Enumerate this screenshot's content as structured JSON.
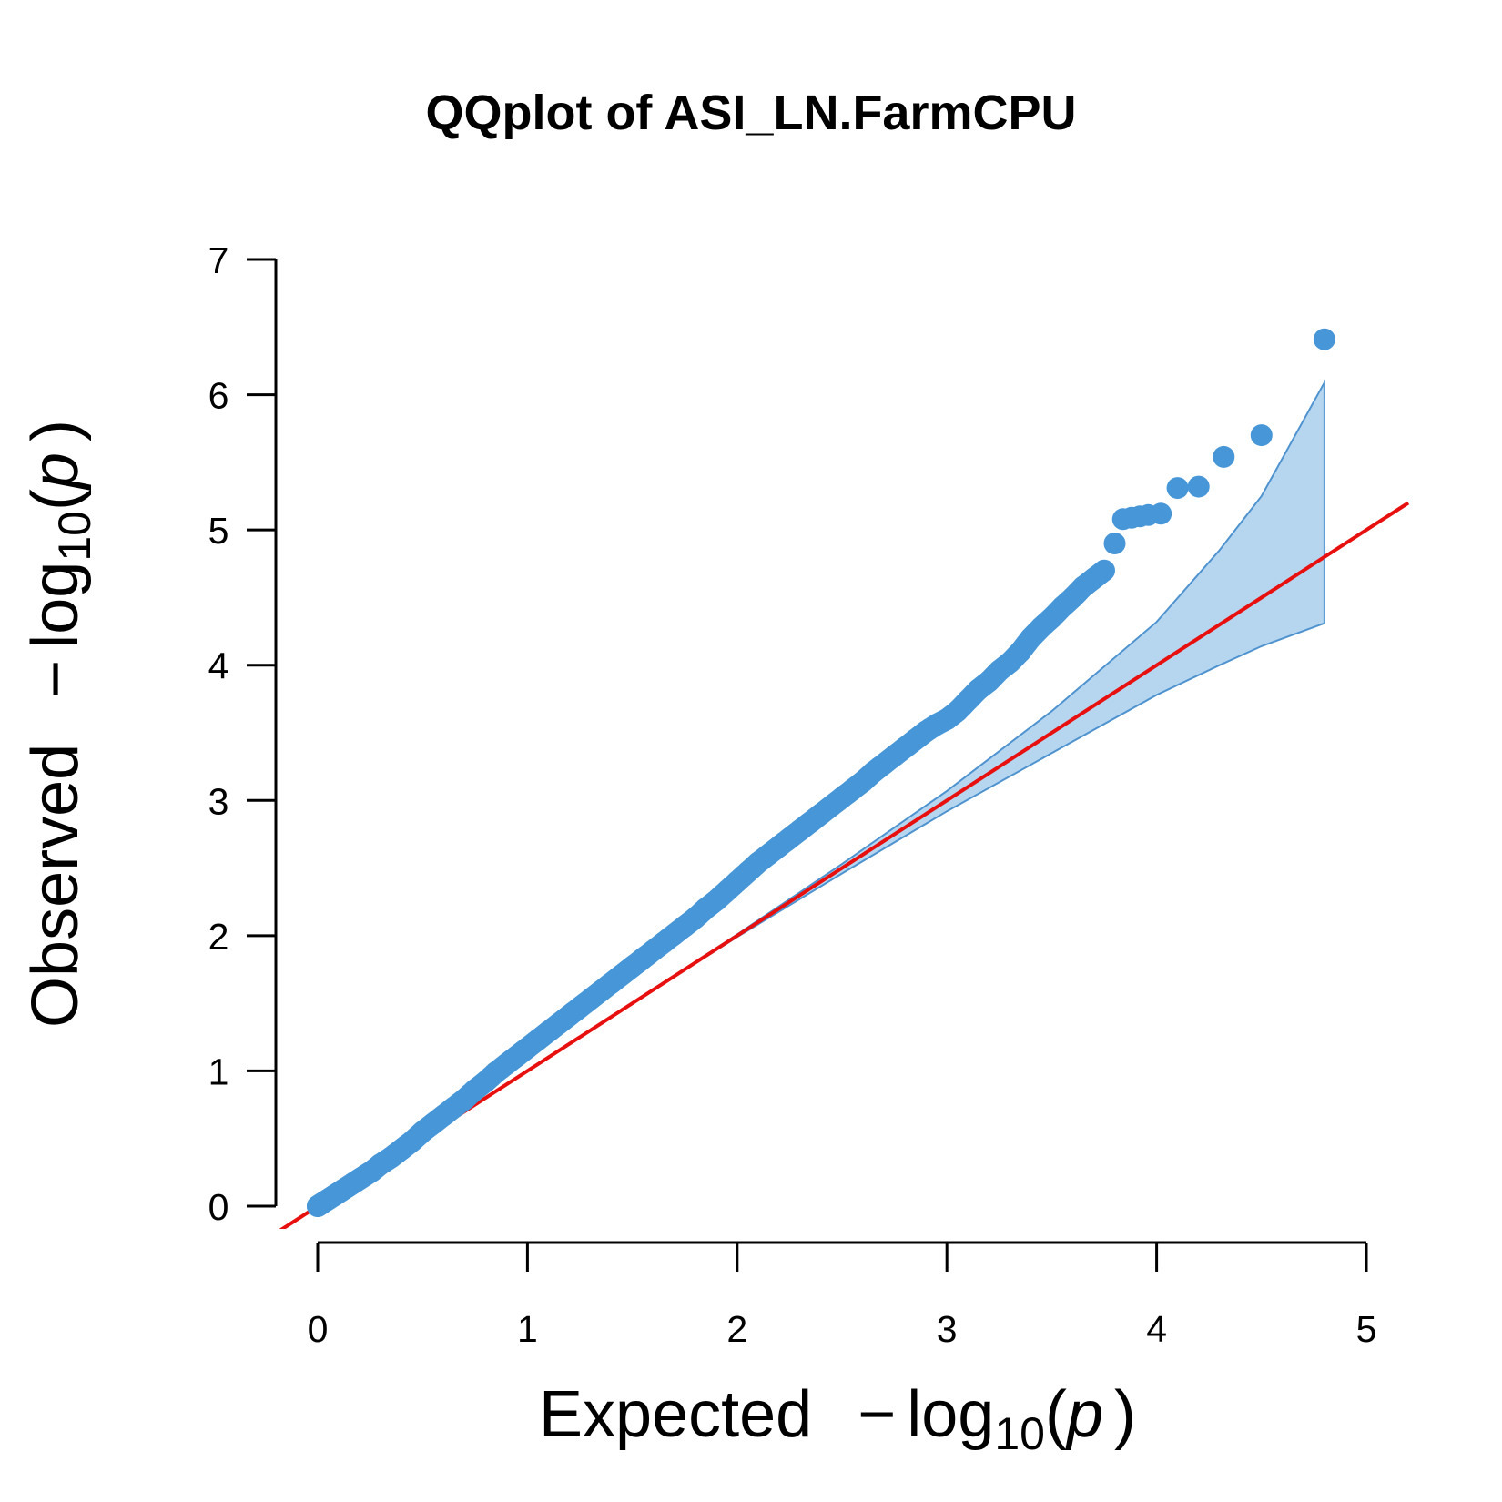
{
  "chart_data": {
    "type": "scatter",
    "title": "QQplot of ASI_LN.FarmCPU",
    "xlabel": {
      "prefix": "Expected",
      "minus": "−",
      "log": "log",
      "base": "10",
      "open": "(",
      "var": "p",
      "close": ")"
    },
    "ylabel": {
      "prefix": "Observed",
      "minus": "−",
      "log": "log",
      "base": "10",
      "open": "(",
      "var": "p",
      "close": ")"
    },
    "xlim": [
      0,
      5
    ],
    "ylim": [
      0,
      7
    ],
    "x_ticks": [
      "0",
      "1",
      "2",
      "3",
      "4",
      "5"
    ],
    "y_ticks": [
      "0",
      "1",
      "2",
      "3",
      "4",
      "5",
      "6",
      "7"
    ],
    "grid": false,
    "colors": {
      "points": "#4696d8",
      "reference_line": "#e8100f",
      "band_fill": "#b6d6f0",
      "band_edge": "#4e93cf"
    },
    "reference_line": {
      "slope": 1,
      "intercept": 0
    },
    "confidence_band": {
      "x": [
        0.0,
        0.5,
        1.0,
        1.5,
        2.0,
        2.5,
        3.0,
        3.5,
        4.0,
        4.3,
        4.5,
        4.8
      ],
      "upper": [
        0.0,
        0.5,
        1.0,
        1.5,
        2.01,
        2.53,
        3.07,
        3.66,
        4.32,
        4.85,
        5.25,
        6.09
      ],
      "lower": [
        0.0,
        0.5,
        1.0,
        1.5,
        1.99,
        2.46,
        2.92,
        3.35,
        3.78,
        4.0,
        4.14,
        4.31
      ]
    },
    "series": [
      {
        "points": [
          [
            0.0,
            0.0
          ],
          [
            0.02,
            0.02
          ],
          [
            0.05,
            0.05
          ],
          [
            0.08,
            0.08
          ],
          [
            0.11,
            0.11
          ],
          [
            0.14,
            0.14
          ],
          [
            0.17,
            0.17
          ],
          [
            0.2,
            0.2
          ],
          [
            0.23,
            0.23
          ],
          [
            0.26,
            0.26
          ],
          [
            0.3,
            0.31
          ],
          [
            0.35,
            0.36
          ],
          [
            0.4,
            0.42
          ],
          [
            0.45,
            0.48
          ],
          [
            0.5,
            0.55
          ],
          [
            0.55,
            0.61
          ],
          [
            0.6,
            0.67
          ],
          [
            0.65,
            0.73
          ],
          [
            0.7,
            0.79
          ],
          [
            0.75,
            0.86
          ],
          [
            0.8,
            0.92
          ],
          [
            0.85,
            0.99
          ],
          [
            0.9,
            1.05
          ],
          [
            0.95,
            1.11
          ],
          [
            1.0,
            1.17
          ],
          [
            1.05,
            1.23
          ],
          [
            1.1,
            1.29
          ],
          [
            1.15,
            1.35
          ],
          [
            1.2,
            1.41
          ],
          [
            1.25,
            1.47
          ],
          [
            1.3,
            1.53
          ],
          [
            1.35,
            1.59
          ],
          [
            1.4,
            1.65
          ],
          [
            1.45,
            1.71
          ],
          [
            1.5,
            1.77
          ],
          [
            1.55,
            1.83
          ],
          [
            1.6,
            1.89
          ],
          [
            1.65,
            1.95
          ],
          [
            1.7,
            2.01
          ],
          [
            1.75,
            2.07
          ],
          [
            1.8,
            2.13
          ],
          [
            1.85,
            2.2
          ],
          [
            1.9,
            2.26
          ],
          [
            1.95,
            2.33
          ],
          [
            2.0,
            2.4
          ],
          [
            2.05,
            2.47
          ],
          [
            2.1,
            2.54
          ],
          [
            2.15,
            2.6
          ],
          [
            2.2,
            2.66
          ],
          [
            2.25,
            2.72
          ],
          [
            2.3,
            2.78
          ],
          [
            2.35,
            2.84
          ],
          [
            2.4,
            2.9
          ],
          [
            2.45,
            2.96
          ],
          [
            2.5,
            3.02
          ],
          [
            2.55,
            3.08
          ],
          [
            2.6,
            3.14
          ],
          [
            2.65,
            3.21
          ],
          [
            2.7,
            3.27
          ],
          [
            2.75,
            3.33
          ],
          [
            2.8,
            3.39
          ],
          [
            2.85,
            3.45
          ],
          [
            2.9,
            3.51
          ],
          [
            2.95,
            3.56
          ],
          [
            3.0,
            3.6
          ],
          [
            3.05,
            3.66
          ],
          [
            3.1,
            3.74
          ],
          [
            3.15,
            3.82
          ],
          [
            3.2,
            3.88
          ],
          [
            3.25,
            3.96
          ],
          [
            3.3,
            4.02
          ],
          [
            3.35,
            4.1
          ],
          [
            3.4,
            4.2
          ],
          [
            3.45,
            4.28
          ],
          [
            3.5,
            4.35
          ],
          [
            3.55,
            4.43
          ],
          [
            3.6,
            4.5
          ],
          [
            3.65,
            4.58
          ],
          [
            3.7,
            4.64
          ],
          [
            3.75,
            4.7
          ],
          [
            3.8,
            4.9
          ],
          [
            3.84,
            5.08
          ],
          [
            3.88,
            5.09
          ],
          [
            3.92,
            5.1
          ],
          [
            3.96,
            5.11
          ],
          [
            4.02,
            5.12
          ],
          [
            4.1,
            5.31
          ],
          [
            4.2,
            5.32
          ],
          [
            4.32,
            5.54
          ],
          [
            4.5,
            5.7
          ],
          [
            4.8,
            6.41
          ]
        ]
      }
    ]
  }
}
